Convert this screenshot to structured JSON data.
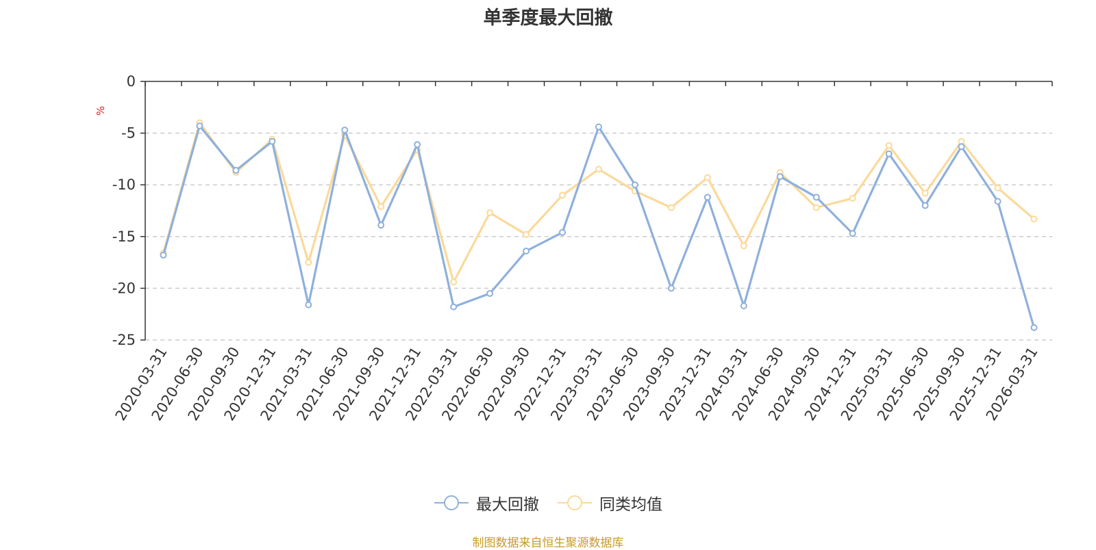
{
  "chart_data": {
    "type": "line",
    "title": "单季度最大回撤",
    "ylabel": "%",
    "xlabel": "",
    "ylim": [
      -25,
      0
    ],
    "yticks": [
      0,
      -5,
      -10,
      -15,
      -20,
      -25
    ],
    "grid": "horizontal dashed",
    "legend_position": "bottom-center",
    "categories": [
      "2020-03-31",
      "2020-06-30",
      "2020-09-30",
      "2020-12-31",
      "2021-03-31",
      "2021-06-30",
      "2021-09-30",
      "2021-12-31",
      "2022-03-31",
      "2022-06-30",
      "2022-09-30",
      "2022-12-31",
      "2023-03-31",
      "2023-06-30",
      "2023-09-30",
      "2023-12-31",
      "2024-03-31",
      "2024-06-30",
      "2024-09-30",
      "2024-12-31",
      "2025-03-31",
      "2025-06-30",
      "2025-09-30",
      "2025-12-31",
      "2026-03-31"
    ],
    "series": [
      {
        "name": "最大回撤",
        "color": "#8eb0dc",
        "values": [
          -16.8,
          -4.3,
          -8.6,
          -5.8,
          -21.6,
          -4.7,
          -13.9,
          -6.1,
          -21.8,
          -20.5,
          -16.4,
          -14.6,
          -4.4,
          -10.0,
          -20.0,
          -11.2,
          -21.7,
          -9.2,
          -11.2,
          -14.7,
          -7.0,
          -12.0,
          -6.3,
          -11.6,
          -23.8
        ]
      },
      {
        "name": "同类均值",
        "color": "#fbd99a",
        "values": [
          -16.6,
          -4.0,
          -8.8,
          -5.6,
          -17.5,
          -5.2,
          -12.1,
          -6.6,
          -19.4,
          -12.7,
          -14.8,
          -11.0,
          -8.5,
          -10.6,
          -12.2,
          -9.3,
          -15.9,
          -8.8,
          -12.2,
          -11.3,
          -6.2,
          -10.8,
          -5.8,
          -10.3,
          -13.3
        ]
      }
    ]
  },
  "source_text": "制图数据来自恒生聚源数据库"
}
